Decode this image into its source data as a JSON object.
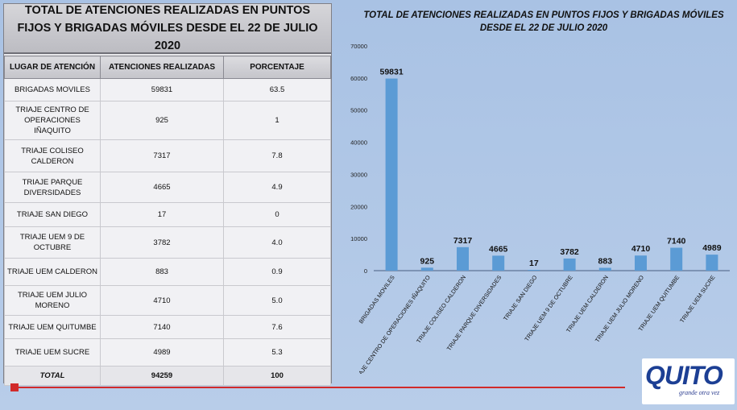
{
  "table": {
    "title": "TOTAL DE ATENCIONES REALIZADAS EN PUNTOS FIJOS Y BRIGADAS MÓVILES DESDE EL 22 DE JULIO 2020",
    "headers": [
      "LUGAR DE ATENCIÓN",
      "ATENCIONES REALIZADAS",
      "PORCENTAJE"
    ],
    "rows": [
      {
        "place": "BRIGADAS MOVILES",
        "count": "59831",
        "pct": "63.5"
      },
      {
        "place": "TRIAJE CENTRO DE OPERACIONES IÑAQUITO",
        "count": "925",
        "pct": "1"
      },
      {
        "place": "TRIAJE COLISEO CALDERON",
        "count": "7317",
        "pct": "7.8"
      },
      {
        "place": "TRIAJE PARQUE DIVERSIDADES",
        "count": "4665",
        "pct": "4.9"
      },
      {
        "place": "TRIAJE SAN DIEGO",
        "count": "17",
        "pct": "0"
      },
      {
        "place": "TRIAJE UEM 9 DE OCTUBRE",
        "count": "3782",
        "pct": "4.0"
      },
      {
        "place": "TRIAJE UEM CALDERON",
        "count": "883",
        "pct": "0.9"
      },
      {
        "place": "TRIAJE UEM JULIO MORENO",
        "count": "4710",
        "pct": "5.0"
      },
      {
        "place": "TRIAJE UEM QUITUMBE",
        "count": "7140",
        "pct": "7.6"
      },
      {
        "place": "TRIAJE UEM SUCRE",
        "count": "4989",
        "pct": "5.3"
      }
    ],
    "total": {
      "label": "TOTAL",
      "count": "94259",
      "pct": "100"
    }
  },
  "chart_data": {
    "type": "bar",
    "title": "TOTAL DE ATENCIONES REALIZADAS EN PUNTOS FIJOS Y BRIGADAS MÓVILES DESDE EL 22 DE JULIO 2020",
    "categories": [
      "BRIGADAS MOVILES",
      "TRIAJE CENTRO DE OPERACIONES IÑAQUITO",
      "TRIAJE COLISEO CALDERON",
      "TRIAJE PARQUE DIVERSIDADES",
      "TRIAJE SAN DIEGO",
      "TRIAJE UEM 9 DE OCTUBRE",
      "TRIAJE UEM CALDERON",
      "TRIAJE UEM JULIO MORENO",
      "TRIAJE UEM QUITUMBE",
      "TRIAJE UEM SUCRE"
    ],
    "tick_labels": [
      "BRIGADAS MOVILES",
      "AJE CENTRO DE OPERACIONES IÑAQUITO",
      "TRIAJE COLISEO CALDERON",
      "TRIAJE PARQUE DIVERSIDADES",
      "TRIAJE SAN DIEGO",
      "TRIAJE UEM 9 DE OCTUBRE",
      "TRIAJE UEM CALDERON",
      "TRIAJE UEM JULIO MORENO",
      "TRIAJE UEM QUITUMBE",
      "TRIAJE UEM SUCRE"
    ],
    "values": [
      59831,
      925,
      7317,
      4665,
      17,
      3782,
      883,
      4710,
      7140,
      4989
    ],
    "ylim": [
      0,
      70000
    ],
    "yticks": [
      0,
      10000,
      20000,
      30000,
      40000,
      50000,
      60000,
      70000
    ],
    "xlabel": "",
    "ylabel": "",
    "grid": false,
    "bar_color": "#5b9bd5"
  },
  "logo": {
    "name": "QUITO",
    "slogan": "grande otra vez"
  }
}
